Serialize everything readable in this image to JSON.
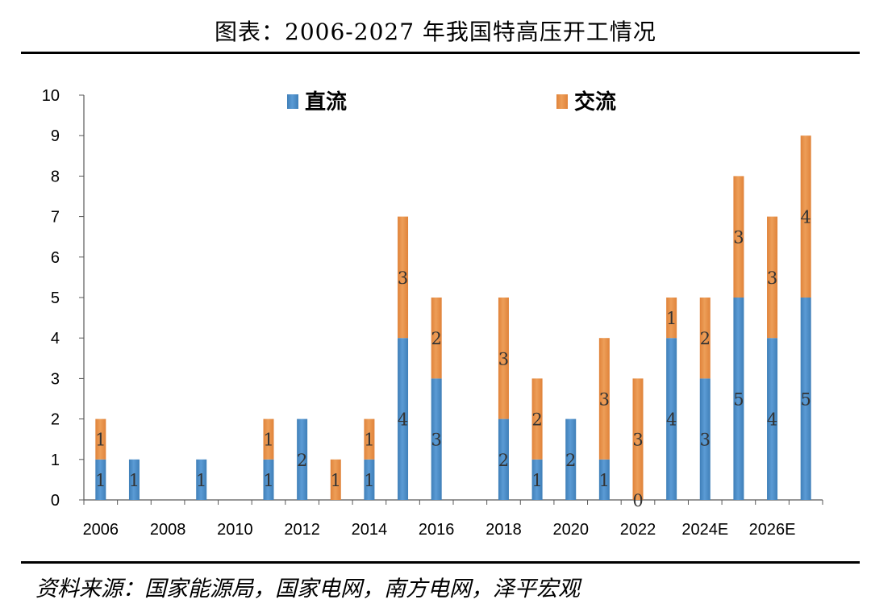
{
  "header": {
    "title": "图表：2006-2027 年我国特高压开工情况"
  },
  "footer": {
    "source": "资料来源：国家能源局，国家电网，南方电网，泽平宏观"
  },
  "colors": {
    "dc": "#5b9bd5",
    "ac": "#ed9e58",
    "axis": "#595959"
  },
  "chart_data": {
    "type": "bar",
    "stacked": true,
    "title": "图表：2006-2027 年我国特高压开工情况",
    "categories": [
      "2006",
      "2007",
      "2008",
      "2009",
      "2010",
      "2011",
      "2012",
      "2013",
      "2014",
      "2015",
      "2016",
      "2017",
      "2018",
      "2019",
      "2020",
      "2021",
      "2022",
      "2023",
      "2024E",
      "2025E",
      "2026E",
      "2027E"
    ],
    "x_tick_labels": [
      "2006",
      "2008",
      "2010",
      "2012",
      "2014",
      "2016",
      "2018",
      "2020",
      "2022",
      "2024E",
      "2026E"
    ],
    "series": [
      {
        "name": "直流",
        "values": [
          1,
          1,
          0,
          1,
          0,
          1,
          2,
          0,
          1,
          4,
          3,
          0,
          2,
          1,
          2,
          1,
          0,
          4,
          3,
          5,
          4,
          5
        ]
      },
      {
        "name": "交流",
        "values": [
          1,
          0,
          0,
          0,
          0,
          1,
          0,
          1,
          1,
          3,
          2,
          0,
          3,
          2,
          0,
          3,
          3,
          1,
          2,
          3,
          3,
          4
        ]
      }
    ],
    "data_labels": [
      {
        "category": "2006",
        "dc": "1",
        "ac": "1"
      },
      {
        "category": "2007",
        "dc": "1",
        "ac": null
      },
      {
        "category": "2009",
        "dc": "1",
        "ac": null
      },
      {
        "category": "2011",
        "dc": "1",
        "ac": "1"
      },
      {
        "category": "2012",
        "dc": "2",
        "ac": null
      },
      {
        "category": "2013",
        "dc": null,
        "ac": "1"
      },
      {
        "category": "2014",
        "dc": "1",
        "ac": "1"
      },
      {
        "category": "2015",
        "dc": "4",
        "ac": "3"
      },
      {
        "category": "2016",
        "dc": "3",
        "ac": "2"
      },
      {
        "category": "2018",
        "dc": "2",
        "ac": "3"
      },
      {
        "category": "2019",
        "dc": "1",
        "ac": "2"
      },
      {
        "category": "2020",
        "dc": "2",
        "ac": null
      },
      {
        "category": "2021",
        "dc": "1",
        "ac": "3"
      },
      {
        "category": "2022",
        "dc": "0",
        "ac": "3"
      },
      {
        "category": "2023",
        "dc": "4",
        "ac": "1"
      },
      {
        "category": "2024E",
        "dc": "3",
        "ac": "2"
      },
      {
        "category": "2025E",
        "dc": "5",
        "ac": "3"
      },
      {
        "category": "2026E",
        "dc": "4",
        "ac": "3"
      },
      {
        "category": "2027E",
        "dc": "5",
        "ac": "4"
      }
    ],
    "ylim": [
      0,
      10
    ],
    "y_ticks": [
      0,
      1,
      2,
      3,
      4,
      5,
      6,
      7,
      8,
      9,
      10
    ],
    "xlabel": "",
    "ylabel": "",
    "grid": false,
    "legend_position": "top"
  }
}
